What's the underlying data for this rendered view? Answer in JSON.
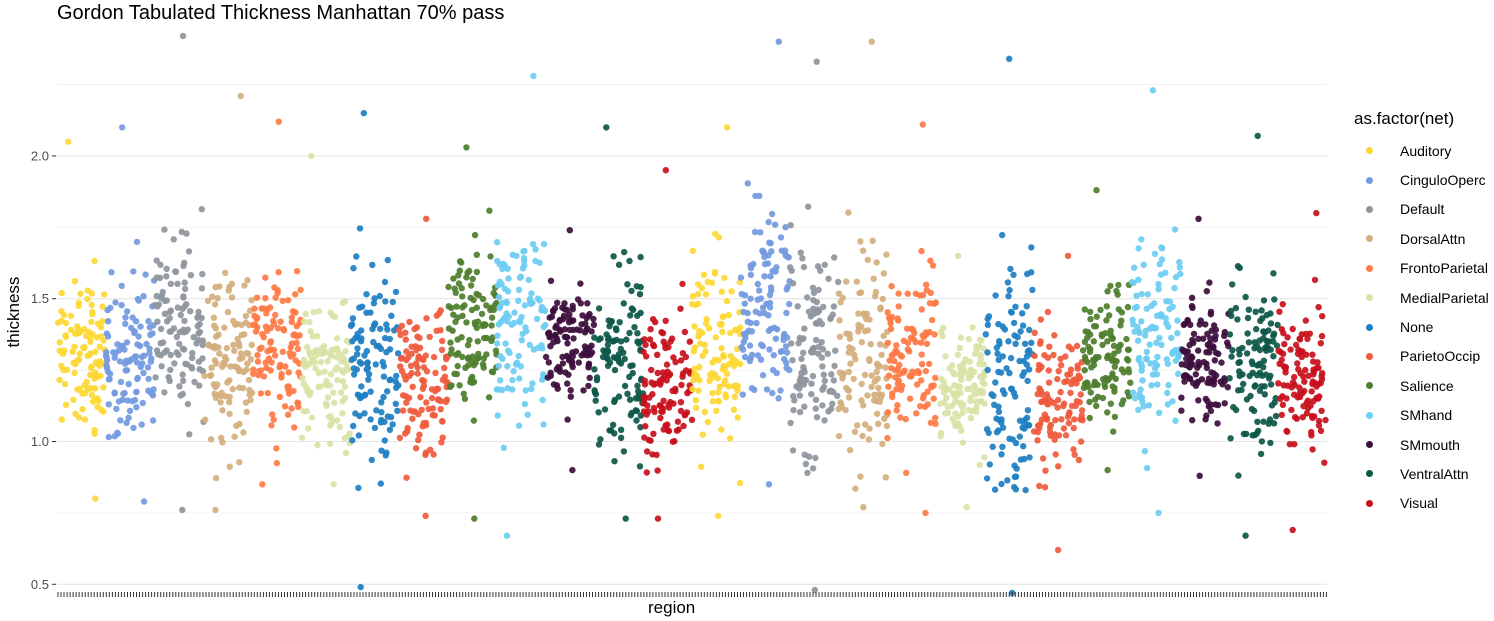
{
  "chart_data": {
    "type": "scatter",
    "title": "Gordon Tabulated Thickness Manhattan 70% pass",
    "xlabel": "region",
    "ylabel": "thickness",
    "ylim": [
      0.48,
      2.42
    ],
    "yticks": [
      "0.5",
      "1.0",
      "1.5",
      "2.0"
    ],
    "ytick_values": [
      0.5,
      1.0,
      1.5,
      2.0
    ],
    "grid": true,
    "legend_title": "as.factor(net)",
    "legend_position": "right",
    "x_ticks_shown": true,
    "x_tick_labels_shown": false,
    "series": [
      {
        "name": "Auditory",
        "color": "#FDD835"
      },
      {
        "name": "CinguloOperc",
        "color": "#7399E0"
      },
      {
        "name": "Default",
        "color": "#8E959C"
      },
      {
        "name": "DorsalAttn",
        "color": "#D2AF7D"
      },
      {
        "name": "FrontoParietal",
        "color": "#FF7A45"
      },
      {
        "name": "MedialParietal",
        "color": "#D9E3A6"
      },
      {
        "name": "None",
        "color": "#1E7FC2"
      },
      {
        "name": "ParietoOccip",
        "color": "#EF5A3C"
      },
      {
        "name": "Salience",
        "color": "#4E7E2E"
      },
      {
        "name": "SMhand",
        "color": "#6DCDF2"
      },
      {
        "name": "SMmouth",
        "color": "#3C0E3C"
      },
      {
        "name": "VentralAttn",
        "color": "#0C5748"
      },
      {
        "name": "Visual",
        "color": "#C8101C"
      }
    ],
    "segments": [
      {
        "net": "Auditory",
        "center": 1.3,
        "bottom": 0.8,
        "top": 2.05
      },
      {
        "net": "CinguloOperc",
        "center": 1.3,
        "bottom": 0.79,
        "top": 2.1
      },
      {
        "net": "Default",
        "center": 1.4,
        "bottom": 0.76,
        "top": 2.42
      },
      {
        "net": "DorsalAttn",
        "center": 1.3,
        "bottom": 0.76,
        "top": 2.21
      },
      {
        "net": "FrontoParietal",
        "center": 1.35,
        "bottom": 0.85,
        "top": 2.12
      },
      {
        "net": "MedialParietal",
        "center": 1.25,
        "bottom": 0.85,
        "top": 2.0
      },
      {
        "net": "None",
        "center": 1.25,
        "bottom": 0.49,
        "top": 2.15
      },
      {
        "net": "ParietoOccip",
        "center": 1.2,
        "bottom": 0.74,
        "top": 1.78
      },
      {
        "net": "Salience",
        "center": 1.4,
        "bottom": 0.73,
        "top": 2.03
      },
      {
        "net": "SMhand",
        "center": 1.4,
        "bottom": 0.67,
        "top": 2.28
      },
      {
        "net": "SMmouth",
        "center": 1.35,
        "bottom": 0.9,
        "top": 1.74
      },
      {
        "net": "VentralAttn",
        "center": 1.3,
        "bottom": 0.73,
        "top": 2.1
      },
      {
        "net": "Visual",
        "center": 1.2,
        "bottom": 0.73,
        "top": 1.95
      },
      {
        "net": "Auditory",
        "center": 1.3,
        "bottom": 0.74,
        "top": 2.1
      },
      {
        "net": "CinguloOperc",
        "center": 1.45,
        "bottom": 0.85,
        "top": 2.4
      },
      {
        "net": "Default",
        "center": 1.3,
        "bottom": 0.48,
        "top": 2.33
      },
      {
        "net": "DorsalAttn",
        "center": 1.3,
        "bottom": 0.77,
        "top": 2.4
      },
      {
        "net": "FrontoParietal",
        "center": 1.3,
        "bottom": 0.75,
        "top": 2.11
      },
      {
        "net": "MedialParietal",
        "center": 1.2,
        "bottom": 0.77,
        "top": 1.65
      },
      {
        "net": "None",
        "center": 1.2,
        "bottom": 0.47,
        "top": 2.34
      },
      {
        "net": "ParietoOccip",
        "center": 1.15,
        "bottom": 0.62,
        "top": 1.65
      },
      {
        "net": "Salience",
        "center": 1.3,
        "bottom": 0.9,
        "top": 1.88
      },
      {
        "net": "SMhand",
        "center": 1.4,
        "bottom": 0.75,
        "top": 2.23
      },
      {
        "net": "SMmouth",
        "center": 1.3,
        "bottom": 0.88,
        "top": 1.78
      },
      {
        "net": "VentralAttn",
        "center": 1.25,
        "bottom": 0.67,
        "top": 2.07
      },
      {
        "net": "Visual",
        "center": 1.2,
        "bottom": 0.69,
        "top": 1.8
      }
    ]
  }
}
